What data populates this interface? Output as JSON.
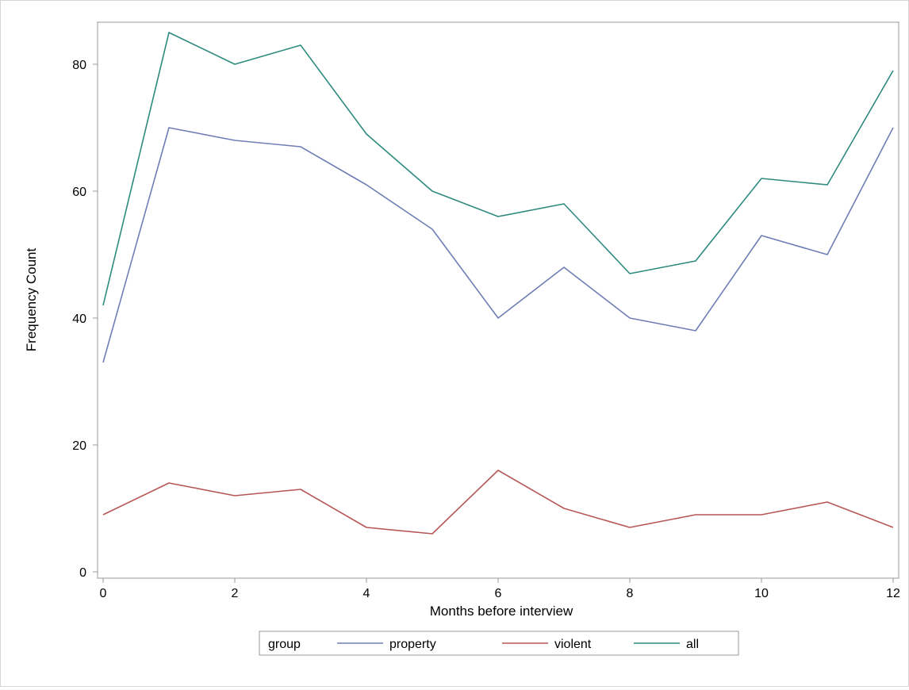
{
  "chart_data": {
    "type": "line",
    "title": "",
    "xlabel": "Months before interview",
    "ylabel": "Frequency Count",
    "x": [
      0,
      1,
      2,
      3,
      4,
      5,
      6,
      7,
      8,
      9,
      10,
      11,
      12
    ],
    "xlim": [
      0,
      12
    ],
    "ylim": [
      0,
      85
    ],
    "xticks": [
      0,
      2,
      4,
      6,
      8,
      10,
      12
    ],
    "yticks": [
      0,
      20,
      40,
      60,
      80
    ],
    "grid": false,
    "legend": {
      "title": "group",
      "position": "bottom"
    },
    "series": [
      {
        "name": "property",
        "color": "#6f7eb5",
        "values": [
          33,
          70,
          68,
          67,
          61,
          54,
          40,
          48,
          40,
          38,
          53,
          50,
          70
        ]
      },
      {
        "name": "violent",
        "color": "#b65756",
        "values": [
          9,
          14,
          12,
          13,
          7,
          6,
          16,
          10,
          7,
          9,
          9,
          11,
          7
        ]
      },
      {
        "name": "all",
        "color": "#2e8a7e",
        "values": [
          42,
          85,
          80,
          83,
          69,
          60,
          56,
          58,
          47,
          49,
          62,
          61,
          79
        ]
      }
    ]
  }
}
